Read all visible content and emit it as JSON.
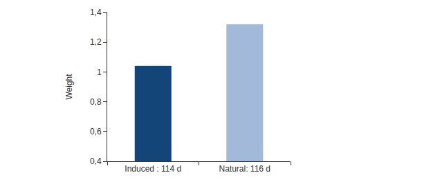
{
  "chart_data": {
    "type": "bar",
    "y_label": "Weight",
    "categories": [
      "Induced : 114 d",
      "Natural: 116 d"
    ],
    "values": [
      1.04,
      1.32
    ],
    "colors": [
      "#134579",
      "#a3b9da"
    ],
    "ylim": [
      0.4,
      1.4
    ],
    "yticks": [
      {
        "value": 0.4,
        "label": "0,4"
      },
      {
        "value": 0.6,
        "label": "0,6"
      },
      {
        "value": 0.8,
        "label": "0,8"
      },
      1,
      {
        "value": 1.2,
        "label": "1,2"
      },
      {
        "value": 1.4,
        "label": "1,4"
      }
    ],
    "grid": false
  }
}
